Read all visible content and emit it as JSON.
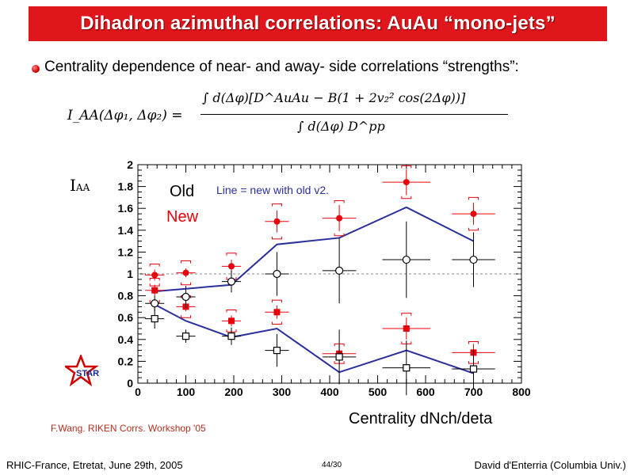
{
  "slide": {
    "title": "Dihadron azimuthal correlations: AuAu “mono-jets”",
    "bullet": "Centrality dependence of near- and away- side correlations “strengths”:",
    "formula_lhs": "I_AA(Δφ₁, Δφ₂) =",
    "formula_num": "∫ d(Δφ)[D^AuAu − B(1 + 2v₂² cos(2Δφ))]",
    "formula_den": "∫ d(Δφ) D^pp",
    "credit": "F.Wang. RIKEN Corrs. Workshop '05",
    "footer_left": "RHIC-France, Etretat, June 29th, 2005",
    "footer_mid": "44/30",
    "footer_right": "David d'Enterria (Columbia Univ.)",
    "logo_text": "STAR"
  },
  "colors": {
    "title_bg": "#e0161d",
    "new_marker": "#e8000b",
    "old_marker": "#000000",
    "line": "#2b2f9e",
    "credit": "#b03020"
  },
  "chart_data": {
    "type": "scatter",
    "xlabel": "Centrality dNch/deta",
    "ylabel": "I_AA",
    "xlim": [
      0,
      800
    ],
    "ylim": [
      0,
      2
    ],
    "xticks": [
      0,
      100,
      200,
      300,
      400,
      500,
      600,
      700,
      800
    ],
    "yticks": [
      0,
      0.2,
      0.4,
      0.6,
      0.8,
      1,
      1.2,
      1.4,
      1.6,
      1.8,
      2
    ],
    "legend": {
      "old": "Old",
      "new": "New",
      "line_note": "Line = new with old v2."
    },
    "reference_line": 1,
    "series": [
      {
        "name": "New",
        "side": "near",
        "marker": "circle-filled",
        "x": [
          35,
          100,
          195,
          290,
          420,
          560,
          700
        ],
        "y": [
          0.99,
          1.01,
          1.07,
          1.48,
          1.51,
          1.84,
          1.55
        ],
        "xerr": [
          20,
          20,
          20,
          25,
          35,
          50,
          45
        ],
        "yerr": [
          0.05,
          0.04,
          0.06,
          0.1,
          0.12,
          0.12,
          0.1
        ],
        "sys": [
          0.1,
          0.11,
          0.12,
          0.16,
          0.16,
          0.15,
          0.15
        ]
      },
      {
        "name": "New",
        "side": "away",
        "marker": "square-filled",
        "x": [
          35,
          100,
          195,
          290,
          420,
          560,
          700
        ],
        "y": [
          0.85,
          0.7,
          0.57,
          0.65,
          0.27,
          0.5,
          0.28
        ],
        "xerr": [
          20,
          20,
          20,
          25,
          35,
          50,
          45
        ],
        "yerr": [
          0.05,
          0.04,
          0.05,
          0.06,
          0.08,
          0.1,
          0.08
        ],
        "sys": [
          0.11,
          0.1,
          0.1,
          0.11,
          0.09,
          0.14,
          0.1
        ]
      },
      {
        "name": "Old",
        "side": "near",
        "marker": "circle-open",
        "x": [
          35,
          100,
          195,
          290,
          420,
          560,
          700
        ],
        "y": [
          0.73,
          0.79,
          0.93,
          1.0,
          1.03,
          1.13,
          1.13
        ],
        "xerr": [
          20,
          20,
          20,
          25,
          35,
          50,
          45
        ],
        "yerr": [
          0.07,
          0.1,
          0.1,
          0.2,
          0.3,
          0.35,
          0.25
        ]
      },
      {
        "name": "Old",
        "side": "away",
        "marker": "square-open",
        "x": [
          35,
          100,
          195,
          290,
          420,
          560,
          700
        ],
        "y": [
          0.59,
          0.43,
          0.43,
          0.3,
          0.24,
          0.14,
          0.13
        ],
        "xerr": [
          20,
          20,
          20,
          25,
          35,
          50,
          45
        ],
        "yerr": [
          0.09,
          0.06,
          0.08,
          0.15,
          0.25,
          0.25,
          0.18
        ]
      },
      {
        "name": "Line = new with old v2.",
        "side": "near",
        "marker": "line",
        "x": [
          35,
          195,
          290,
          420,
          560,
          700
        ],
        "y": [
          0.84,
          0.9,
          1.27,
          1.33,
          1.61,
          1.3
        ]
      },
      {
        "name": "Line = new with old v2.",
        "side": "away",
        "marker": "line",
        "x": [
          35,
          100,
          195,
          290,
          420,
          560,
          700
        ],
        "y": [
          0.72,
          0.57,
          0.42,
          0.5,
          0.1,
          0.3,
          0.09
        ]
      }
    ]
  }
}
